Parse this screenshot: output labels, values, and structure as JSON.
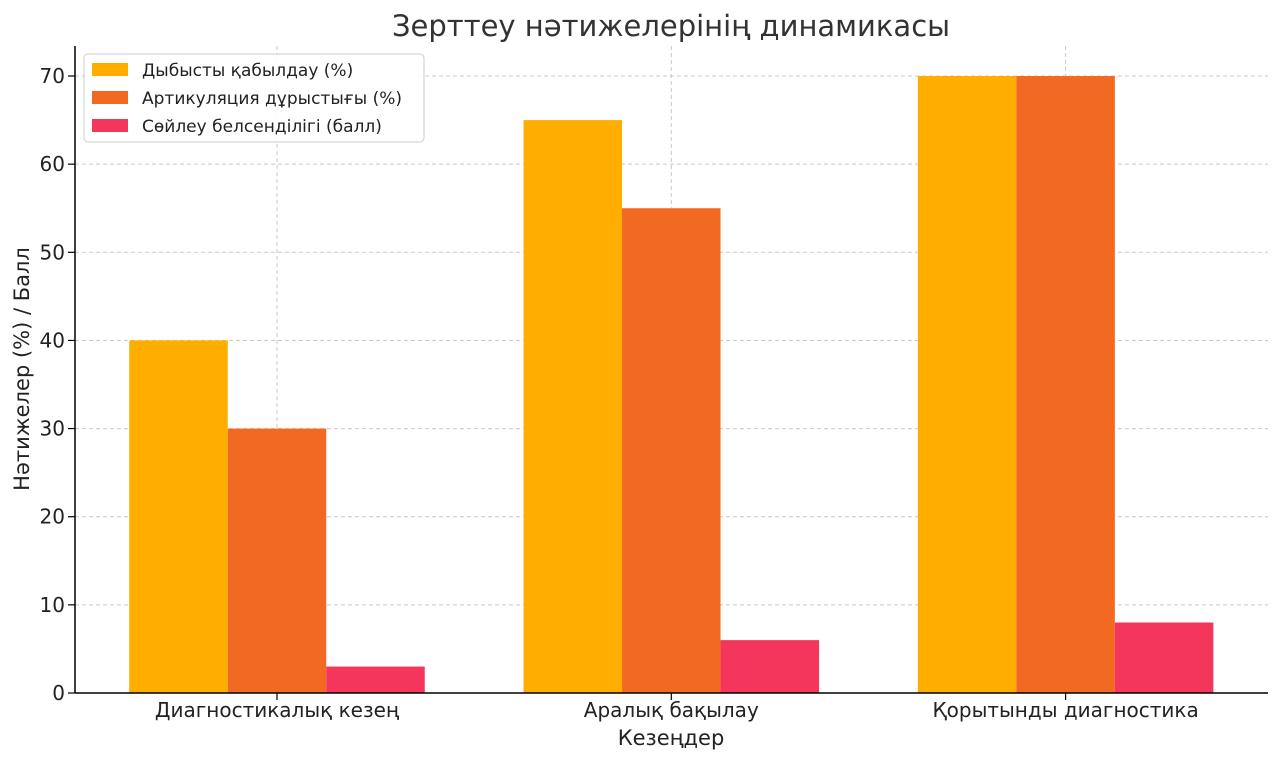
{
  "chart_data": {
    "type": "bar",
    "title": "Зерттеу нәтижелерінің динамикасы",
    "xlabel": "Кезеңдер",
    "ylabel": "Нәтижелер (%) / Балл",
    "categories": [
      "Диагностикалық кезең",
      "Аралық бақылау",
      "Қорытынды диагностика"
    ],
    "series": [
      {
        "name": "Дыбысты қабылдау (%)",
        "values": [
          40,
          65,
          70
        ],
        "color": "#FFAE00"
      },
      {
        "name": "Артикуляция дұрыстығы (%)",
        "values": [
          30,
          55,
          70
        ],
        "color": "#F26A21"
      },
      {
        "name": "Сөйлеу белсенділігі (балл)",
        "values": [
          3,
          6,
          8
        ],
        "color": "#F5365C"
      }
    ],
    "ylim": [
      0,
      73.5
    ],
    "yticks": [
      0,
      10,
      20,
      30,
      40,
      50,
      60,
      70
    ],
    "grid": true,
    "legend_position": "top-left"
  }
}
